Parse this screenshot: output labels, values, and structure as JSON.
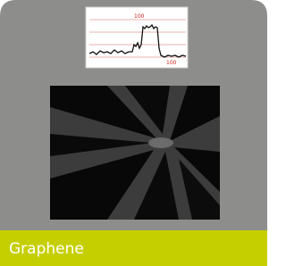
{
  "thumbnail": {
    "annotations": [
      "100",
      "100"
    ]
  },
  "label": "Graphene"
}
